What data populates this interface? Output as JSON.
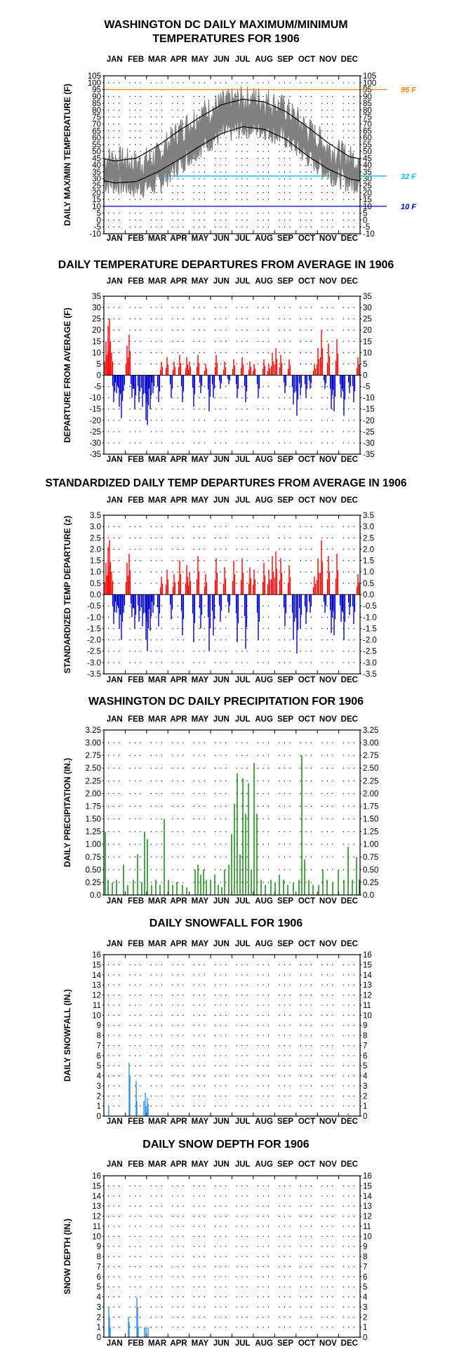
{
  "months": [
    "JAN",
    "FEB",
    "MAR",
    "APR",
    "MAY",
    "JUN",
    "JUL",
    "AUG",
    "SEP",
    "OCT",
    "NOV",
    "DEC"
  ],
  "colors": {
    "temp_line": "#808080",
    "normal_line": "#000000",
    "ref_95": "#ff8000",
    "ref_32": "#00bfff",
    "ref_10": "#0000cc",
    "positive": "#ff0000",
    "negative": "#0000cc",
    "precip": "#008000",
    "snow": "#3090e0"
  },
  "chart_data": [
    {
      "id": "temp",
      "type": "line",
      "title": "WASHINGTON DC DAILY MAXIMUM/MINIMUM\nTEMPERATURES FOR 1906",
      "ylabel": "DAILY MAX/MIN TEMPERATURE (F)",
      "xlabel": "",
      "ylim": [
        -10,
        105
      ],
      "yticks": [
        105,
        100,
        95,
        90,
        85,
        80,
        75,
        70,
        65,
        60,
        55,
        50,
        45,
        40,
        35,
        30,
        25,
        20,
        15,
        10,
        5,
        0,
        -5,
        -10
      ],
      "grid": true,
      "reference_lines": [
        {
          "value": 95,
          "label": "95 F",
          "color": "#ff8000"
        },
        {
          "value": 32,
          "label": "32 F",
          "color": "#00bfff"
        },
        {
          "value": 10,
          "label": "10 F",
          "color": "#0000cc"
        }
      ],
      "series": [],
      "max_monthly": [
        44,
        40,
        46,
        64,
        76,
        84,
        87,
        87,
        80,
        66,
        52,
        44
      ],
      "min_monthly": [
        27,
        24,
        26,
        41,
        54,
        63,
        68,
        67,
        60,
        47,
        35,
        28
      ],
      "normal_max_monthly": [
        43,
        45,
        54,
        65,
        75,
        84,
        88,
        86,
        79,
        68,
        56,
        46
      ],
      "normal_min_monthly": [
        27,
        28,
        35,
        44,
        54,
        63,
        68,
        66,
        59,
        47,
        37,
        30
      ]
    },
    {
      "id": "depart",
      "type": "bar",
      "title": "DAILY TEMPERATURE DEPARTURES FROM AVERAGE IN 1906",
      "ylabel": "DEPARTURE FROM AVERAGE (F)",
      "ylim": [
        -35,
        35
      ],
      "yticks": [
        35,
        30,
        25,
        20,
        15,
        10,
        5,
        0,
        -5,
        -10,
        -15,
        -20,
        -25,
        -30,
        -35
      ],
      "grid": true,
      "values_sparse": [
        [
          3,
          15
        ],
        [
          6,
          22
        ],
        [
          8,
          25
        ],
        [
          11,
          10
        ],
        [
          14,
          -12
        ],
        [
          18,
          -8
        ],
        [
          22,
          -14
        ],
        [
          25,
          -19
        ],
        [
          28,
          -7
        ],
        [
          33,
          13
        ],
        [
          36,
          18
        ],
        [
          40,
          -10
        ],
        [
          44,
          -15
        ],
        [
          50,
          -12
        ],
        [
          55,
          -14
        ],
        [
          60,
          -20
        ],
        [
          62,
          -22
        ],
        [
          66,
          -15
        ],
        [
          70,
          -8
        ],
        [
          78,
          -12
        ],
        [
          82,
          6
        ],
        [
          90,
          8
        ],
        [
          96,
          -10
        ],
        [
          100,
          6
        ],
        [
          108,
          9
        ],
        [
          112,
          -12
        ],
        [
          118,
          8
        ],
        [
          122,
          6
        ],
        [
          128,
          -14
        ],
        [
          134,
          9
        ],
        [
          138,
          -8
        ],
        [
          145,
          5
        ],
        [
          150,
          -16
        ],
        [
          156,
          -10
        ],
        [
          160,
          9
        ],
        [
          166,
          -6
        ],
        [
          172,
          6
        ],
        [
          178,
          -4
        ],
        [
          185,
          7
        ],
        [
          190,
          -10
        ],
        [
          197,
          8
        ],
        [
          202,
          -12
        ],
        [
          208,
          6
        ],
        [
          214,
          5
        ],
        [
          220,
          -10
        ],
        [
          228,
          7
        ],
        [
          235,
          5
        ],
        [
          240,
          10
        ],
        [
          245,
          12
        ],
        [
          252,
          9
        ],
        [
          258,
          -8
        ],
        [
          264,
          7
        ],
        [
          270,
          -13
        ],
        [
          275,
          -18
        ],
        [
          280,
          -9
        ],
        [
          288,
          -10
        ],
        [
          294,
          -6
        ],
        [
          300,
          5
        ],
        [
          305,
          12
        ],
        [
          310,
          20
        ],
        [
          315,
          -6
        ],
        [
          320,
          14
        ],
        [
          324,
          -15
        ],
        [
          328,
          -16
        ],
        [
          332,
          16
        ],
        [
          338,
          -10
        ],
        [
          342,
          -18
        ],
        [
          350,
          -8
        ],
        [
          356,
          -12
        ],
        [
          362,
          8
        ]
      ]
    },
    {
      "id": "zdepart",
      "type": "bar",
      "title": "STANDARDIZED DAILY TEMP DEPARTURES FROM AVERAGE IN 1906",
      "ylabel": "STANDARDIZED TEMP DEPARTURE (z)",
      "ylim": [
        -3.5,
        3.5
      ],
      "yticks": [
        3.5,
        3.0,
        2.5,
        2.0,
        1.5,
        1.0,
        0.5,
        0.0,
        -0.5,
        -1.0,
        -1.5,
        -2.0,
        -2.5,
        -3.0,
        -3.5
      ],
      "grid": true,
      "values_sparse": [
        [
          3,
          1.4
        ],
        [
          6,
          2.1
        ],
        [
          8,
          2.4
        ],
        [
          11,
          1.0
        ],
        [
          14,
          -1.3
        ],
        [
          18,
          -0.8
        ],
        [
          22,
          -1.5
        ],
        [
          25,
          -2.0
        ],
        [
          28,
          -0.8
        ],
        [
          33,
          1.4
        ],
        [
          36,
          1.8
        ],
        [
          40,
          -1.0
        ],
        [
          44,
          -1.5
        ],
        [
          50,
          -1.2
        ],
        [
          55,
          -1.4
        ],
        [
          60,
          -2.0
        ],
        [
          62,
          -2.5
        ],
        [
          66,
          -1.6
        ],
        [
          70,
          -0.8
        ],
        [
          78,
          -1.4
        ],
        [
          82,
          0.8
        ],
        [
          90,
          1.1
        ],
        [
          96,
          -1.1
        ],
        [
          100,
          0.9
        ],
        [
          108,
          1.5
        ],
        [
          112,
          -1.8
        ],
        [
          118,
          1.3
        ],
        [
          122,
          1.0
        ],
        [
          128,
          -2.1
        ],
        [
          134,
          1.7
        ],
        [
          138,
          -1.5
        ],
        [
          145,
          0.9
        ],
        [
          150,
          -2.5
        ],
        [
          156,
          -1.8
        ],
        [
          160,
          1.6
        ],
        [
          166,
          -1.2
        ],
        [
          172,
          1.2
        ],
        [
          178,
          -0.8
        ],
        [
          185,
          1.5
        ],
        [
          190,
          -2.1
        ],
        [
          197,
          1.6
        ],
        [
          202,
          -2.4
        ],
        [
          208,
          1.2
        ],
        [
          214,
          1.1
        ],
        [
          220,
          -2.0
        ],
        [
          228,
          1.4
        ],
        [
          235,
          1.1
        ],
        [
          240,
          1.7
        ],
        [
          245,
          1.9
        ],
        [
          252,
          1.6
        ],
        [
          258,
          -1.4
        ],
        [
          264,
          1.3
        ],
        [
          270,
          -2.0
        ],
        [
          275,
          -2.6
        ],
        [
          280,
          -1.5
        ],
        [
          288,
          -1.3
        ],
        [
          294,
          -0.8
        ],
        [
          300,
          0.8
        ],
        [
          305,
          1.6
        ],
        [
          310,
          2.4
        ],
        [
          315,
          -0.8
        ],
        [
          320,
          1.7
        ],
        [
          324,
          -1.7
        ],
        [
          328,
          -1.8
        ],
        [
          332,
          1.8
        ],
        [
          338,
          -1.2
        ],
        [
          342,
          -2.0
        ],
        [
          350,
          -0.9
        ],
        [
          356,
          -1.3
        ],
        [
          362,
          0.9
        ]
      ]
    },
    {
      "id": "precip",
      "type": "bar",
      "title": "WASHINGTON DC DAILY PRECIPITATION FOR 1906",
      "ylabel": "DAILY PRECIPITATION (IN.)",
      "ylim": [
        0,
        3.25
      ],
      "yticks": [
        3.25,
        3.0,
        2.75,
        2.5,
        2.25,
        2.0,
        1.75,
        1.5,
        1.25,
        1.0,
        0.75,
        0.5,
        0.25,
        0.0
      ],
      "grid": true,
      "values_sparse": [
        [
          2,
          1.25
        ],
        [
          6,
          0.3
        ],
        [
          12,
          0.25
        ],
        [
          18,
          0.3
        ],
        [
          28,
          0.6
        ],
        [
          34,
          0.2
        ],
        [
          42,
          0.3
        ],
        [
          48,
          0.8
        ],
        [
          54,
          0.25
        ],
        [
          58,
          1.25
        ],
        [
          62,
          1.1
        ],
        [
          68,
          0.2
        ],
        [
          74,
          0.3
        ],
        [
          80,
          0.2
        ],
        [
          86,
          1.5
        ],
        [
          92,
          0.3
        ],
        [
          98,
          0.2
        ],
        [
          104,
          0.25
        ],
        [
          112,
          0.2
        ],
        [
          118,
          0.15
        ],
        [
          130,
          0.5
        ],
        [
          134,
          0.6
        ],
        [
          138,
          0.4
        ],
        [
          142,
          0.5
        ],
        [
          146,
          0.3
        ],
        [
          152,
          0.3
        ],
        [
          158,
          0.4
        ],
        [
          163,
          0.2
        ],
        [
          168,
          0.15
        ],
        [
          172,
          0.5
        ],
        [
          178,
          0.6
        ],
        [
          182,
          1.2
        ],
        [
          186,
          1.8
        ],
        [
          190,
          2.4
        ],
        [
          194,
          0.8
        ],
        [
          198,
          2.3
        ],
        [
          202,
          1.6
        ],
        [
          206,
          2.2
        ],
        [
          210,
          0.5
        ],
        [
          214,
          2.6
        ],
        [
          218,
          1.6
        ],
        [
          224,
          0.3
        ],
        [
          230,
          0.2
        ],
        [
          238,
          0.3
        ],
        [
          244,
          0.25
        ],
        [
          250,
          0.4
        ],
        [
          256,
          0.3
        ],
        [
          262,
          0.2
        ],
        [
          270,
          0.25
        ],
        [
          278,
          0.3
        ],
        [
          282,
          2.75
        ],
        [
          286,
          0.7
        ],
        [
          292,
          0.3
        ],
        [
          298,
          0.2
        ],
        [
          306,
          0.2
        ],
        [
          312,
          0.5
        ],
        [
          318,
          0.3
        ],
        [
          326,
          0.25
        ],
        [
          334,
          0.5
        ],
        [
          342,
          0.3
        ],
        [
          348,
          0.95
        ],
        [
          354,
          0.3
        ],
        [
          360,
          0.75
        ],
        [
          364,
          0.3
        ]
      ]
    },
    {
      "id": "snow",
      "type": "bar",
      "title": "DAILY SNOWFALL FOR 1906",
      "ylabel": "DAILY SNOWFALL (IN.)",
      "ylim": [
        0,
        16
      ],
      "yticks": [
        16,
        15,
        14,
        13,
        12,
        11,
        10,
        9,
        8,
        7,
        6,
        5,
        4,
        3,
        2,
        1,
        0
      ],
      "grid": true,
      "values_sparse": [
        [
          7,
          1.0
        ],
        [
          36,
          5.3
        ],
        [
          37,
          4.0
        ],
        [
          46,
          3.5
        ],
        [
          47,
          1.5
        ],
        [
          57,
          1.5
        ],
        [
          59,
          2.3
        ],
        [
          60,
          1.0
        ],
        [
          62,
          1.8
        ],
        [
          63,
          1.2
        ],
        [
          348,
          0.3
        ]
      ]
    },
    {
      "id": "depth",
      "type": "bar",
      "title": "DAILY SNOW DEPTH FOR 1906",
      "ylabel": "SNOW DEPTH (IN.)",
      "ylim": [
        0,
        16
      ],
      "yticks": [
        16,
        15,
        14,
        13,
        12,
        11,
        10,
        9,
        8,
        7,
        6,
        5,
        4,
        3,
        2,
        1,
        0
      ],
      "grid": true,
      "values_sparse": [
        [
          7,
          3.0
        ],
        [
          8,
          2.0
        ],
        [
          9,
          1.0
        ],
        [
          35,
          2.0
        ],
        [
          36,
          1.5
        ],
        [
          47,
          4.0
        ],
        [
          48,
          3.0
        ],
        [
          49,
          1.0
        ],
        [
          58,
          1.0
        ],
        [
          60,
          1.0
        ],
        [
          63,
          1.0
        ]
      ]
    }
  ]
}
